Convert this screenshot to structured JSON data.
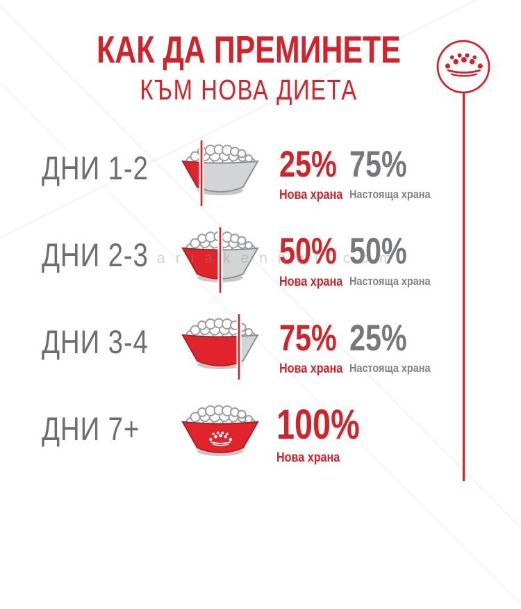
{
  "colors": {
    "accent_red": "#d2232a",
    "bowl_red": "#e1242c",
    "day_gray": "#6d6e71",
    "current_gray": "#77787b"
  },
  "header": {
    "title": "КАК ДА ПРЕМИНЕТЕ",
    "subtitle": "КЪМ НОВА ДИЕТА"
  },
  "logo": {
    "name": "royal-canin-crown-logo"
  },
  "watermark": {
    "text": "ariakennel com"
  },
  "rows": [
    {
      "label": "ДНИ 1-2",
      "new_pct": "25%",
      "new_label": "Нова храна",
      "current_pct": "75%",
      "current_label": "Настояща храна",
      "bowl_fill": 25
    },
    {
      "label": "ДНИ 2-3",
      "new_pct": "50%",
      "new_label": "Нова храна",
      "current_pct": "50%",
      "current_label": "Настояща храна",
      "bowl_fill": 50
    },
    {
      "label": "ДНИ 3-4",
      "new_pct": "75%",
      "new_label": "Нова храна",
      "current_pct": "25%",
      "current_label": "Настояща храна",
      "bowl_fill": 75
    },
    {
      "label": "ДНИ 7+",
      "new_pct": "100%",
      "new_label": "Нова храна",
      "bowl_fill": 100
    }
  ]
}
